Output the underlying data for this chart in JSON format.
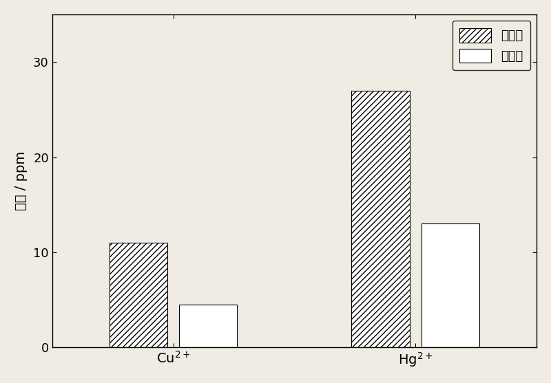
{
  "categories": [
    "Cu$^{2+}$",
    "Hg$^{2+}$"
  ],
  "before_adsorption": [
    11.0,
    27.0
  ],
  "after_adsorption": [
    4.5,
    13.0
  ],
  "ylabel": "浓度 / ppm",
  "ylim": [
    0,
    35
  ],
  "yticks": [
    0,
    10,
    20,
    30
  ],
  "bar_width": 0.12,
  "group_centers": [
    0.25,
    0.75
  ],
  "legend_labels": [
    "吸附前",
    "吸附后"
  ],
  "hatch_pattern": "////",
  "bar_edge_color": "#000000",
  "face_color": "#ffffff",
  "background_color": "#f0ece4",
  "figsize": [
    8.0,
    5.57
  ],
  "dpi": 100,
  "xlim": [
    0.0,
    1.0
  ]
}
